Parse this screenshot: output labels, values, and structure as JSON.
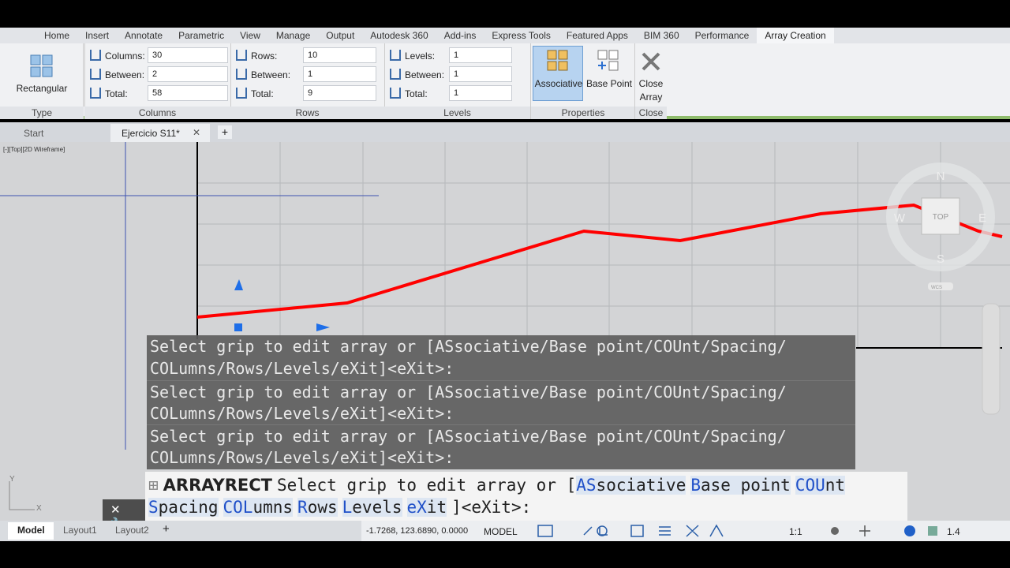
{
  "ribbon_tabs": [
    "Home",
    "Insert",
    "Annotate",
    "Parametric",
    "View",
    "Manage",
    "Output",
    "Autodesk 360",
    "Add-ins",
    "Express Tools",
    "Featured Apps",
    "BIM 360",
    "Performance",
    "Array Creation"
  ],
  "panels": {
    "type": {
      "button": "Rectangular",
      "label": "Type"
    },
    "columns": {
      "label": "Columns",
      "fields": [
        {
          "name": "Columns:",
          "value": "30"
        },
        {
          "name": "Between:",
          "value": "2"
        },
        {
          "name": "Total:",
          "value": "58"
        }
      ]
    },
    "rows": {
      "label": "Rows",
      "fields": [
        {
          "name": "Rows:",
          "value": "10"
        },
        {
          "name": "Between:",
          "value": "1"
        },
        {
          "name": "Total:",
          "value": "9"
        }
      ]
    },
    "levels": {
      "label": "Levels",
      "fields": [
        {
          "name": "Levels:",
          "value": "1"
        },
        {
          "name": "Between:",
          "value": "1"
        },
        {
          "name": "Total:",
          "value": "1"
        }
      ]
    },
    "properties": {
      "label": "Properties",
      "buttons": [
        "Associative",
        "Base Point"
      ]
    },
    "close": {
      "label": "Close",
      "button": [
        "Close",
        "Array"
      ]
    }
  },
  "doc_tabs": [
    "Start",
    "Ejercicio S11*"
  ],
  "viewport_label": "[-][Top][2D Wireframe]",
  "viewcube": {
    "n": "N",
    "s": "S",
    "w": "W",
    "e": "E",
    "face": "TOP",
    "ucs": "WCS"
  },
  "ucs_icon": {
    "y": "Y",
    "x": "X"
  },
  "command_history": [
    [
      "Select grip to edit array or [ASsociative/Base point/COUnt/Spacing/",
      "COLumns/Rows/Levels/eXit]<eXit>:"
    ],
    [
      "Select grip to edit array or [ASsociative/Base point/COUnt/Spacing/",
      "COLumns/Rows/Levels/eXit]<eXit>:"
    ],
    [
      "Select grip to edit array or [ASsociative/Base point/COUnt/Spacing/",
      "COLumns/Rows/Levels/eXit]<eXit>:"
    ]
  ],
  "command_line": {
    "command": "ARRAYRECT",
    "prompt": "Select grip to edit array or [",
    "options": [
      {
        "key": "AS",
        "rest": "sociative"
      },
      {
        "key": "B",
        "rest": "ase point"
      },
      {
        "key": "COU",
        "rest": "nt"
      },
      {
        "key": "S",
        "rest": "pacing"
      },
      {
        "key": "COL",
        "rest": "umns"
      },
      {
        "key": "R",
        "rest": "ows"
      },
      {
        "key": "L",
        "rest": "evels"
      },
      {
        "key": "eX",
        "rest": "it"
      }
    ],
    "suffix": "]<eXit>:"
  },
  "layout_tabs": [
    "Model",
    "Layout1",
    "Layout2"
  ],
  "status": {
    "coordinates": "-1.7268, 123.6890, 0.0000",
    "space": "MODEL",
    "scale": "1:1",
    "value": "1.4"
  }
}
